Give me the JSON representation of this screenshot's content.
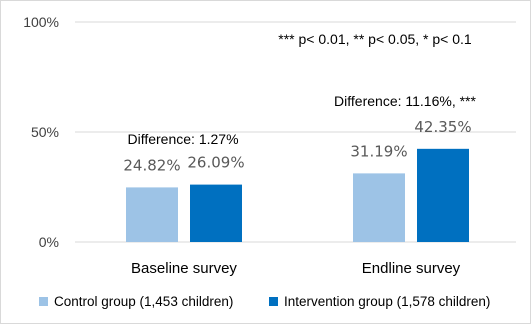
{
  "chart_data": {
    "type": "bar",
    "categories": [
      "Baseline survey",
      "Endline survey"
    ],
    "series": [
      {
        "name": "Control group (1,453 children)",
        "values": [
          24.82,
          31.19
        ],
        "labels": [
          "24.82%",
          "31.19%"
        ],
        "color": "#9dc3e6"
      },
      {
        "name": "Intervention group (1,578 children)",
        "values": [
          26.09,
          42.35
        ],
        "labels": [
          "26.09%",
          "42.35%"
        ],
        "color": "#0070c0"
      }
    ],
    "ylim": [
      0,
      100
    ],
    "yticks": [
      0,
      50,
      100
    ],
    "ytick_labels": [
      "0%",
      "50%",
      "100%"
    ],
    "annotations": [
      "Difference:  1.27%",
      "Difference: 11.16%, ***",
      "*** p< 0.01, ** p< 0.05, * p< 0.1"
    ],
    "grid": true,
    "legend_position": "bottom",
    "title": "",
    "xlabel": "",
    "ylabel": ""
  }
}
